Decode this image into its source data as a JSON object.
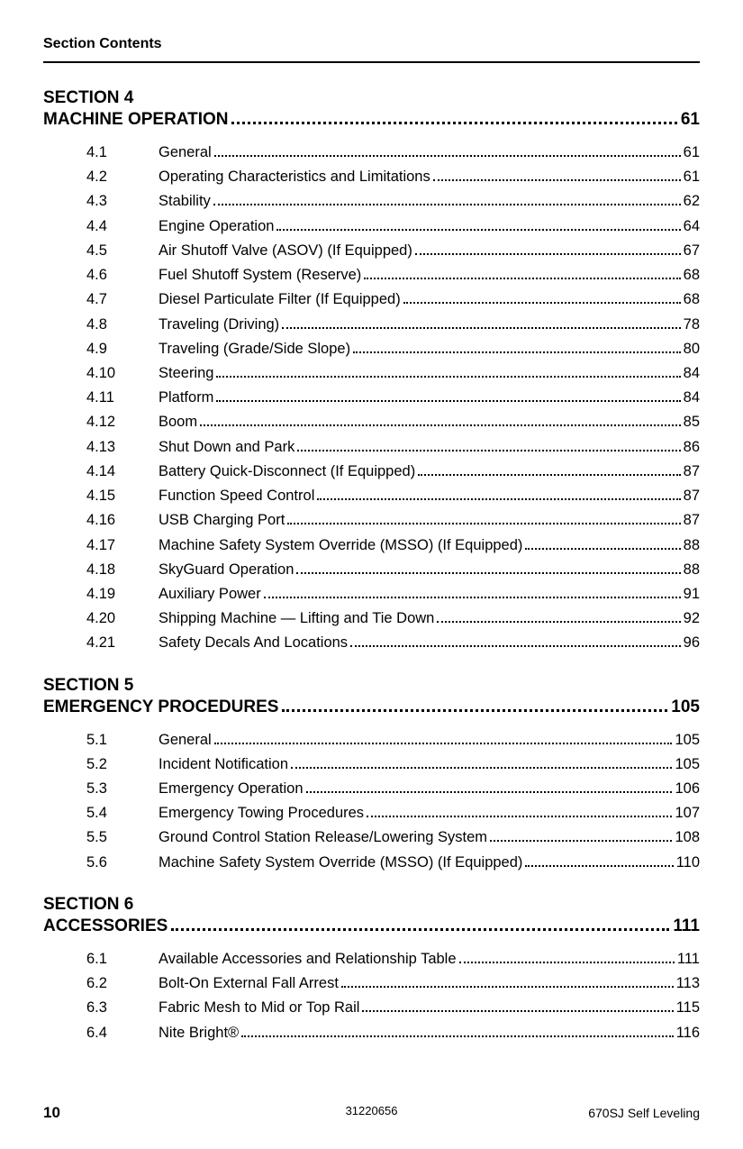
{
  "header": {
    "title": "Section Contents"
  },
  "sections": [
    {
      "label": "SECTION 4",
      "title": "MACHINE OPERATION",
      "page": "61",
      "entries": [
        {
          "num": "4.1",
          "title": "General",
          "page": "61"
        },
        {
          "num": "4.2",
          "title": "Operating Characteristics and Limitations",
          "page": "61"
        },
        {
          "num": "4.3",
          "title": "Stability",
          "page": "62"
        },
        {
          "num": "4.4",
          "title": "Engine Operation",
          "page": "64"
        },
        {
          "num": "4.5",
          "title": "Air Shutoff Valve (ASOV) (If Equipped)",
          "page": "67"
        },
        {
          "num": "4.6",
          "title": "Fuel Shutoff System (Reserve)",
          "page": "68"
        },
        {
          "num": "4.7",
          "title": "Diesel Particulate Filter (If Equipped)",
          "page": "68"
        },
        {
          "num": "4.8",
          "title": "Traveling (Driving)",
          "page": "78"
        },
        {
          "num": "4.9",
          "title": "Traveling (Grade/Side Slope)",
          "page": "80"
        },
        {
          "num": "4.10",
          "title": "Steering",
          "page": "84"
        },
        {
          "num": "4.11",
          "title": "Platform",
          "page": "84"
        },
        {
          "num": "4.12",
          "title": "Boom",
          "page": "85"
        },
        {
          "num": "4.13",
          "title": "Shut Down and Park",
          "page": "86"
        },
        {
          "num": "4.14",
          "title": "Battery Quick-Disconnect (If Equipped)",
          "page": "87"
        },
        {
          "num": "4.15",
          "title": "Function Speed Control",
          "page": "87"
        },
        {
          "num": "4.16",
          "title": "USB Charging Port",
          "page": "87"
        },
        {
          "num": "4.17",
          "title": "Machine Safety System Override (MSSO) (If Equipped)",
          "page": "88"
        },
        {
          "num": "4.18",
          "title": "SkyGuard Operation",
          "page": "88"
        },
        {
          "num": "4.19",
          "title": "Auxiliary Power",
          "page": "91"
        },
        {
          "num": "4.20",
          "title": "Shipping Machine — Lifting and Tie Down",
          "page": "92"
        },
        {
          "num": "4.21",
          "title": "Safety Decals And Locations",
          "page": "96"
        }
      ]
    },
    {
      "label": "SECTION 5",
      "title": "EMERGENCY PROCEDURES",
      "page": "105",
      "entries": [
        {
          "num": "5.1",
          "title": "General",
          "page": "105"
        },
        {
          "num": "5.2",
          "title": "Incident Notification",
          "page": "105"
        },
        {
          "num": "5.3",
          "title": "Emergency Operation",
          "page": "106"
        },
        {
          "num": "5.4",
          "title": "Emergency Towing Procedures",
          "page": "107"
        },
        {
          "num": "5.5",
          "title": "Ground Control Station Release/Lowering System",
          "page": "108"
        },
        {
          "num": "5.6",
          "title": "Machine Safety System Override (MSSO) (If Equipped)",
          "page": "110"
        }
      ]
    },
    {
      "label": "SECTION 6",
      "title": "ACCESSORIES",
      "page": "111",
      "entries": [
        {
          "num": "6.1",
          "title": "Available Accessories and Relationship Table",
          "page": "111"
        },
        {
          "num": "6.2",
          "title": "Bolt-On External Fall Arrest",
          "page": "113"
        },
        {
          "num": "6.3",
          "title": "Fabric Mesh to Mid or Top Rail",
          "page": "115"
        },
        {
          "num": "6.4",
          "title": "Nite Bright®",
          "page": "116"
        }
      ]
    }
  ],
  "footer": {
    "page_number": "10",
    "doc_number": "31220656",
    "model": "670SJ Self Leveling"
  },
  "styling": {
    "background_color": "#ffffff",
    "text_color": "#000000",
    "font_family": "Arial, Helvetica, sans-serif",
    "header_fontsize": 16,
    "section_label_fontsize": 19,
    "entry_fontsize": 16.5,
    "footer_fontsize": 14,
    "border_color": "#000000",
    "border_width": 2.5,
    "leader_style": "dotted"
  }
}
